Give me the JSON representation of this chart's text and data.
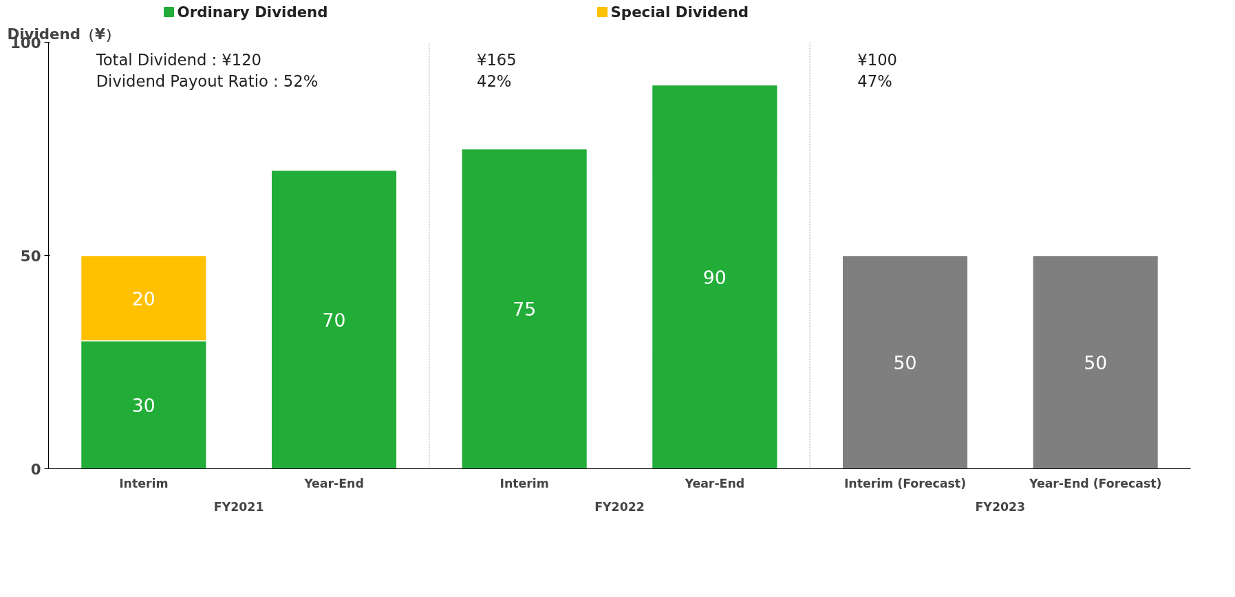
{
  "chart_data": {
    "type": "bar",
    "ylabel": "Dividend（¥）",
    "categories": [
      "Interim",
      "Year-End",
      "Interim",
      "Year-End",
      "Interim (Forecast)",
      "Year-End (Forecast)"
    ],
    "series": [
      {
        "name": "Ordinary Dividend",
        "color": "#22ad38",
        "values": [
          30,
          70,
          75,
          90,
          null,
          null
        ]
      },
      {
        "name": "Special Dividend",
        "color": "#ffc000",
        "values": [
          20,
          null,
          null,
          null,
          null,
          null
        ]
      },
      {
        "color": "#7f7f7f",
        "values": [
          null,
          null,
          null,
          null,
          50,
          50
        ]
      }
    ],
    "stacked": true,
    "data_labels": true,
    "ylim": [
      0,
      100
    ],
    "yticks": [
      0,
      50,
      100
    ],
    "grid": false,
    "legend": "top",
    "annotations": [
      "Total Dividend : ¥120\nDividend Payout Ratio : 52%",
      "¥165\n42%",
      "¥100\n47%",
      "FY2021",
      "FY2022",
      "FY2023"
    ]
  }
}
